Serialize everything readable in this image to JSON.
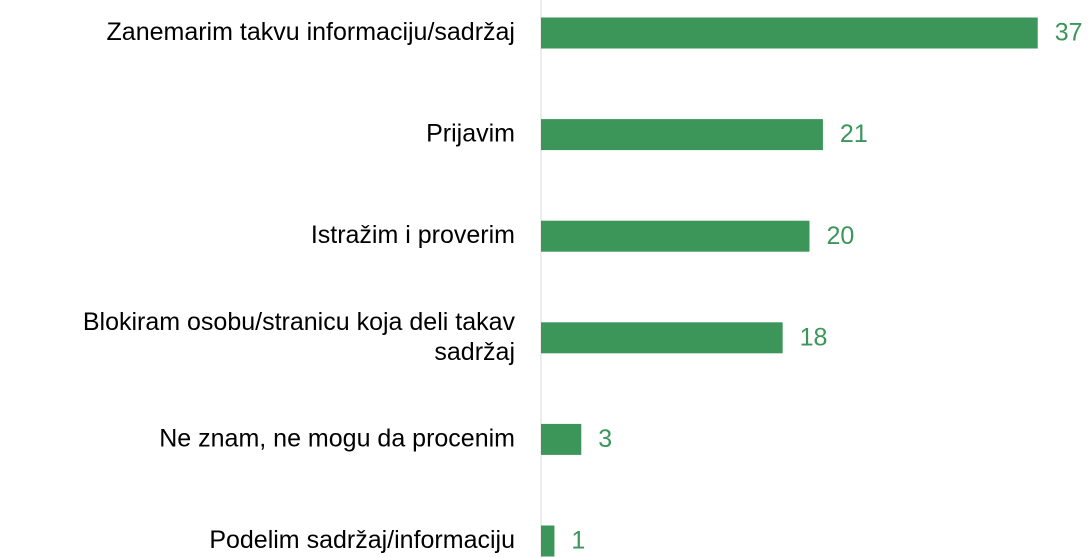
{
  "chart_data": {
    "type": "bar",
    "orientation": "horizontal",
    "categories": [
      "Zanemarim takvu informaciju/sadržaj",
      "Prijavim",
      "Istražim i proverim",
      "Blokiram osobu/stranicu koja deli takav sadržaj",
      "Ne znam, ne mogu da procenim",
      "Podelim sadržaj/informaciju"
    ],
    "values": [
      37,
      21,
      20,
      18,
      3,
      1
    ],
    "color": "#3c965a",
    "xlim": [
      0,
      40
    ]
  }
}
